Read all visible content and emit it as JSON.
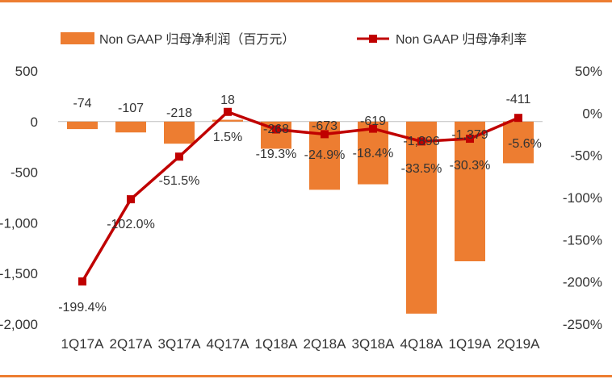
{
  "colors": {
    "bar": "#ED7D31",
    "line": "#C00000",
    "rule": "#ED7D31",
    "axis": "#BFBFBF",
    "text": "#333333"
  },
  "chart_data": {
    "type": "bar",
    "categories": [
      "1Q17A",
      "2Q17A",
      "3Q17A",
      "4Q17A",
      "1Q18A",
      "2Q18A",
      "3Q18A",
      "4Q18A",
      "1Q19A",
      "2Q19A"
    ],
    "series": [
      {
        "name": "Non GAAP 归母净利润（百万元）",
        "type": "bar",
        "axis": "left",
        "values": [
          -74,
          -107,
          -218,
          18,
          -268,
          -673,
          -619,
          -1896,
          -1379,
          -411
        ],
        "labels": [
          "-74",
          "-107",
          "-218",
          "18",
          "-268",
          "-673",
          "-619",
          "-1,896",
          "-1,379",
          "-411"
        ]
      },
      {
        "name": "Non GAAP 归母净利率",
        "type": "line",
        "axis": "right",
        "values": [
          -199.4,
          -102.0,
          -51.5,
          1.5,
          -19.3,
          -24.9,
          -18.4,
          -33.5,
          -30.3,
          -5.6
        ],
        "labels": [
          "-199.4%",
          "-102.0%",
          "-51.5%",
          "1.5%",
          "-19.3%",
          "-24.9%",
          "-18.4%",
          "-33.5%",
          "-30.3%",
          "-5.6%"
        ]
      }
    ],
    "y_left": {
      "ylim": [
        -2000,
        500
      ],
      "ticks": [
        500,
        0,
        -500,
        -1000,
        -1500,
        -2000
      ],
      "tick_labels": [
        "500",
        "0",
        "-500",
        "-1,000",
        "-1,500",
        "-2,000"
      ]
    },
    "y_right": {
      "ylim": [
        -250,
        50
      ],
      "ticks": [
        50,
        0,
        -50,
        -100,
        -150,
        -200,
        -250
      ],
      "tick_labels": [
        "50%",
        "0%",
        "-50%",
        "-100%",
        "-150%",
        "-200%",
        "-250%"
      ]
    },
    "legend_position": "top",
    "grid": false
  }
}
